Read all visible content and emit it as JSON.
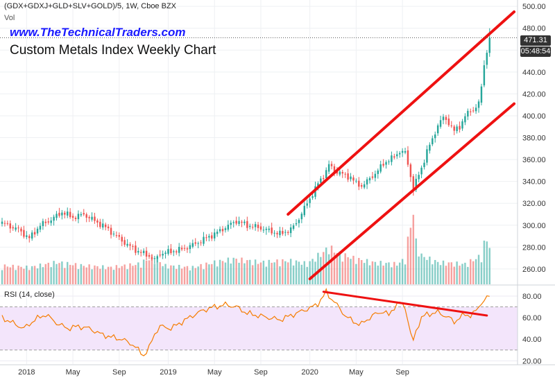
{
  "header": {
    "symbol_line": "(GDX+GDXJ+GLD+SLV+GOLD)/5, 1W, Cboe BZX",
    "volume_label": "Vol",
    "watermark_url": "www.TheTechnicalTraders.com",
    "chart_title": "Custom Metals Index Weekly Chart",
    "rsi_label": "RSI (14, close)"
  },
  "price_tags": {
    "last_price": "471.31",
    "countdown": "05:48:54"
  },
  "colors": {
    "up": "#26a69a",
    "down": "#ef5350",
    "trend": "#ee1111",
    "rsi_line": "#f57c00",
    "rsi_band": "#f3e5fb"
  },
  "chart_data": [
    {
      "type": "candlestick",
      "title": "Custom Metals Index Weekly Chart",
      "x_tick_labels": [
        "2018",
        "May",
        "Sep",
        "2019",
        "May",
        "Sep",
        "2020",
        "May",
        "Sep"
      ],
      "y_tick_labels": [
        "260.00",
        "280.00",
        "300.00",
        "320.00",
        "340.00",
        "360.00",
        "380.00",
        "400.00",
        "420.00",
        "440.00",
        "460.00",
        "480.00",
        "500.00"
      ],
      "ylim": [
        246,
        502
      ],
      "last_close": 471.31,
      "anchors": [
        [
          0,
          302
        ],
        [
          6,
          296
        ],
        [
          10,
          288
        ],
        [
          14,
          300
        ],
        [
          18,
          305
        ],
        [
          22,
          312
        ],
        [
          26,
          307
        ],
        [
          30,
          310
        ],
        [
          34,
          304
        ],
        [
          38,
          298
        ],
        [
          42,
          290
        ],
        [
          46,
          282
        ],
        [
          50,
          276
        ],
        [
          54,
          272
        ],
        [
          56,
          268
        ],
        [
          58,
          274
        ],
        [
          62,
          276
        ],
        [
          66,
          278
        ],
        [
          70,
          282
        ],
        [
          74,
          287
        ],
        [
          78,
          292
        ],
        [
          82,
          298
        ],
        [
          86,
          304
        ],
        [
          90,
          300
        ],
        [
          94,
          298
        ],
        [
          98,
          295
        ],
        [
          102,
          292
        ],
        [
          106,
          296
        ],
        [
          108,
          302
        ],
        [
          112,
          320
        ],
        [
          116,
          338
        ],
        [
          118,
          345
        ],
        [
          120,
          355
        ],
        [
          122,
          350
        ],
        [
          124,
          348
        ],
        [
          126,
          345
        ],
        [
          128,
          344
        ],
        [
          130,
          338
        ],
        [
          132,
          336
        ],
        [
          134,
          340
        ],
        [
          136,
          345
        ],
        [
          138,
          350
        ],
        [
          140,
          356
        ],
        [
          142,
          360
        ],
        [
          144,
          362
        ],
        [
          146,
          368
        ],
        [
          148,
          366
        ],
        [
          150,
          345
        ],
        [
          151,
          335
        ],
        [
          152,
          340
        ],
        [
          154,
          352
        ],
        [
          156,
          368
        ],
        [
          158,
          378
        ],
        [
          160,
          392
        ],
        [
          162,
          398
        ],
        [
          164,
          394
        ],
        [
          166,
          386
        ],
        [
          168,
          390
        ],
        [
          170,
          400
        ],
        [
          172,
          404
        ],
        [
          174,
          408
        ],
        [
          175,
          412
        ],
        [
          176,
          425
        ],
        [
          177,
          448
        ],
        [
          178,
          458
        ],
        [
          179,
          471.31
        ]
      ],
      "trendlines": [
        {
          "name": "upper channel",
          "x": [
            105,
            188
          ],
          "y": [
            310,
            495
          ]
        },
        {
          "name": "lower channel",
          "x": [
            113,
            188
          ],
          "y": [
            251,
            411
          ]
        }
      ]
    },
    {
      "type": "bar",
      "title": "Vol",
      "volume_anchors": [
        [
          0,
          22
        ],
        [
          10,
          20
        ],
        [
          20,
          26
        ],
        [
          30,
          22
        ],
        [
          40,
          20
        ],
        [
          50,
          24
        ],
        [
          55,
          32
        ],
        [
          60,
          22
        ],
        [
          70,
          20
        ],
        [
          78,
          26
        ],
        [
          85,
          30
        ],
        [
          95,
          26
        ],
        [
          105,
          28
        ],
        [
          110,
          26
        ],
        [
          112,
          24
        ],
        [
          116,
          34
        ],
        [
          118,
          38
        ],
        [
          120,
          44
        ],
        [
          122,
          40
        ],
        [
          124,
          36
        ],
        [
          126,
          34
        ],
        [
          130,
          30
        ],
        [
          136,
          26
        ],
        [
          145,
          24
        ],
        [
          148,
          30
        ],
        [
          149,
          52
        ],
        [
          150,
          70
        ],
        [
          151,
          86
        ],
        [
          152,
          50
        ],
        [
          154,
          34
        ],
        [
          160,
          26
        ],
        [
          170,
          24
        ],
        [
          176,
          34
        ],
        [
          177,
          48
        ],
        [
          178,
          52
        ],
        [
          179,
          46
        ]
      ]
    },
    {
      "type": "line",
      "title": "RSI (14, close)",
      "y_tick_labels": [
        "20.00",
        "40.00",
        "60.00",
        "80.00"
      ],
      "ylim": [
        17,
        89
      ],
      "band": [
        30,
        70
      ],
      "rsi_anchors": [
        [
          0,
          60
        ],
        [
          4,
          55
        ],
        [
          8,
          50
        ],
        [
          12,
          58
        ],
        [
          16,
          63
        ],
        [
          20,
          55
        ],
        [
          24,
          50
        ],
        [
          28,
          52
        ],
        [
          32,
          50
        ],
        [
          36,
          45
        ],
        [
          40,
          42
        ],
        [
          44,
          40
        ],
        [
          48,
          35
        ],
        [
          50,
          30
        ],
        [
          52,
          25
        ],
        [
          54,
          32
        ],
        [
          56,
          45
        ],
        [
          58,
          52
        ],
        [
          62,
          50
        ],
        [
          66,
          56
        ],
        [
          70,
          62
        ],
        [
          74,
          67
        ],
        [
          78,
          70
        ],
        [
          82,
          72
        ],
        [
          86,
          70
        ],
        [
          90,
          64
        ],
        [
          94,
          62
        ],
        [
          98,
          60
        ],
        [
          102,
          58
        ],
        [
          106,
          62
        ],
        [
          110,
          66
        ],
        [
          114,
          70
        ],
        [
          116,
          73
        ],
        [
          118,
          80
        ],
        [
          119,
          84
        ],
        [
          120,
          80
        ],
        [
          122,
          75
        ],
        [
          124,
          68
        ],
        [
          126,
          62
        ],
        [
          128,
          58
        ],
        [
          130,
          55
        ],
        [
          132,
          54
        ],
        [
          136,
          62
        ],
        [
          140,
          66
        ],
        [
          142,
          62
        ],
        [
          144,
          70
        ],
        [
          146,
          74
        ],
        [
          148,
          70
        ],
        [
          150,
          45
        ],
        [
          151,
          38
        ],
        [
          152,
          48
        ],
        [
          154,
          60
        ],
        [
          156,
          63
        ],
        [
          160,
          65
        ],
        [
          164,
          60
        ],
        [
          166,
          56
        ],
        [
          168,
          60
        ],
        [
          170,
          63
        ],
        [
          172,
          62
        ],
        [
          174,
          66
        ],
        [
          176,
          74
        ],
        [
          178,
          78
        ],
        [
          179,
          80
        ]
      ],
      "trendlines": [
        {
          "name": "rsi divergence",
          "x": [
            118,
            178
          ],
          "y": [
            84,
            62
          ]
        }
      ]
    }
  ]
}
